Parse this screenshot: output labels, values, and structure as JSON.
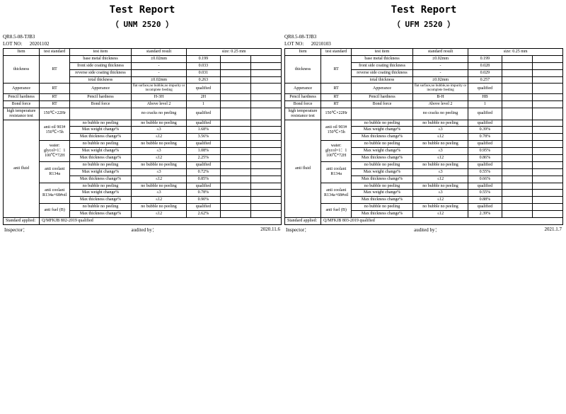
{
  "reports": [
    {
      "title": "Test Report",
      "subtitle": "（ UNM 2520 ）",
      "doc_no": "QR8.5-08-TJB3",
      "lot_label": "LOT NO:",
      "lot_no": "20201102",
      "headers": {
        "item": "Item",
        "test_standard": "test standard",
        "test_item": "test item",
        "standard_result": "standard result",
        "size": "size: 0.25 mm"
      },
      "thickness": {
        "label": "thickness",
        "std": "RT",
        "rows": [
          {
            "test": "base metal thickness",
            "res": "±0.02mm",
            "val": "0.199"
          },
          {
            "test": "front side coating thickness",
            "res": "-",
            "val": "0.033"
          },
          {
            "test": "reverse side coating thickness",
            "res": "-",
            "val": "0.031"
          },
          {
            "test": "total thickness",
            "res": "±0.02mm",
            "val": "0.263"
          }
        ]
      },
      "appearance": {
        "label": "Apperance",
        "std": "RT",
        "test": "Apperance",
        "res": "flat surface,no bubble,no impurity or incomplete feeding",
        "val": "qualified"
      },
      "pencil": {
        "label": "Pencil hardness",
        "std": "RT",
        "test": "Pencil hardness",
        "res": "H-3H",
        "val": "2H"
      },
      "bond": {
        "label": "Bond force",
        "std": "RT",
        "test": "Bond force",
        "res": "Above level 2",
        "val": "1"
      },
      "hightemp": {
        "label": "high temperature resistance test",
        "std": "150℃×22Hr",
        "test": "",
        "res": "no cracks  no peeling",
        "val": "qualified"
      },
      "antifluid": {
        "label": "anti fluid",
        "groups": [
          {
            "std": "anti oil 903# 150℃×5h",
            "rows": [
              {
                "test": "no bubble  no peeling",
                "res": "no bubble  no peeling",
                "val": "qualified"
              },
              {
                "test": "Max weight change%",
                "res": "≤3",
                "val": "1.68%"
              },
              {
                "test": "Max thickness change%",
                "res": "≤12",
                "val": "3.56%"
              }
            ]
          },
          {
            "std": "water: glycol=1：1 100℃*72H",
            "rows": [
              {
                "test": "no bubble  no peeling",
                "res": "no bubble  no peeling",
                "val": "qualified"
              },
              {
                "test": "Max weight change%",
                "res": "≤3",
                "val": "1.08%"
              },
              {
                "test": "Max thickness change%",
                "res": "≤12",
                "val": "2.25%"
              }
            ]
          },
          {
            "std": "anti coolant R134a",
            "rows": [
              {
                "test": "no bubble  no peeling",
                "res": "no bubble  no peeling",
                "val": "qualified"
              },
              {
                "test": "Max weight change%",
                "res": "≤3",
                "val": "0.72%"
              },
              {
                "test": "Max thickness change%",
                "res": "≤12",
                "val": "0.85%"
              }
            ]
          },
          {
            "std": "anti coolant R134a+68#oil",
            "rows": [
              {
                "test": "no bubble  no peeling",
                "res": "no bubble  no peeling",
                "val": "qualified"
              },
              {
                "test": "Max weight change%",
                "res": "≤3",
                "val": "0.78%"
              },
              {
                "test": "Max thickness change%",
                "res": "≤12",
                "val": "0.90%"
              }
            ]
          },
          {
            "std": "anti fuel (B)",
            "rows": [
              {
                "test": "no bubble  no peeling",
                "res": "no bubble  no peeling",
                "val": "qualified"
              },
              {
                "test": "Max thickness change%",
                "res": "≤12",
                "val": "2.62%"
              }
            ]
          }
        ]
      },
      "std_applied": {
        "label": "Standard applied:",
        "val": "Q/MFKJB 802-2019  qualified"
      },
      "footer": {
        "inspector": "Inspector：",
        "audited": "audited by：",
        "date": "2020.11.6"
      }
    },
    {
      "title": "Test Report",
      "subtitle": "（ UFM 2520 ）",
      "doc_no": "QR8.5-08-TJB3",
      "lot_label": "LOT NO:",
      "lot_no": "20210103",
      "headers": {
        "item": "Item",
        "test_standard": "test standard",
        "test_item": "test item",
        "standard_result": "standard result",
        "size": "size: 0.25 mm"
      },
      "thickness": {
        "label": "thickness",
        "std": "RT",
        "rows": [
          {
            "test": "base metal thickness",
            "res": "±0.02mm",
            "val": "0.199"
          },
          {
            "test": "front side coating thickness",
            "res": "-",
            "val": "0.028"
          },
          {
            "test": "reverse side coating thickness",
            "res": "-",
            "val": "0.029"
          },
          {
            "test": "total thickness",
            "res": "±0.02mm",
            "val": "0.257"
          }
        ]
      },
      "appearance": {
        "label": "Apperance",
        "std": "RT",
        "test": "Apperance",
        "res": "flat surface,no bubble,no impurity or incomplete feeding",
        "val": "qualified"
      },
      "pencil": {
        "label": "Pencil hardness",
        "std": "RT",
        "test": "Pencil hardness",
        "res": "B-H",
        "val": "HB"
      },
      "bond": {
        "label": "Bond force",
        "std": "RT",
        "test": "Bond force",
        "res": "Above level 2",
        "val": "1"
      },
      "hightemp": {
        "label": "high temperature resistance test",
        "std": "150℃×22Hr",
        "test": "",
        "res": "no cracks  no peeling",
        "val": "qualified"
      },
      "antifluid": {
        "label": "anti fluid",
        "groups": [
          {
            "std": "anti oil 903# 150℃×5h",
            "rows": [
              {
                "test": "no bubble  no peeling",
                "res": "no bubble  no peeling",
                "val": "qualified"
              },
              {
                "test": "Max weight change%",
                "res": "≤3",
                "val": "0.39%"
              },
              {
                "test": "Max thickness change%",
                "res": "≤12",
                "val": "0.78%"
              }
            ]
          },
          {
            "std": "water: glycol=1：1 100℃*72H",
            "rows": [
              {
                "test": "no bubble  no peeling",
                "res": "no bubble  no peeling",
                "val": "qualified"
              },
              {
                "test": "Max weight change%",
                "res": "≤3",
                "val": "0.95%"
              },
              {
                "test": "Max thickness change%",
                "res": "≤12",
                "val": "0.86%"
              }
            ]
          },
          {
            "std": "anti coolant R134a",
            "rows": [
              {
                "test": "no bubble  no peeling",
                "res": "no bubble  no peeling",
                "val": "qualified"
              },
              {
                "test": "Max weight change%",
                "res": "≤3",
                "val": "0.55%"
              },
              {
                "test": "Max thickness change%",
                "res": "≤12",
                "val": "0.66%"
              }
            ]
          },
          {
            "std": "anti coolant R134a+68#oil",
            "rows": [
              {
                "test": "no bubble  no peeling",
                "res": "no bubble  no peeling",
                "val": "qualified"
              },
              {
                "test": "Max weight change%",
                "res": "≤3",
                "val": "0.55%"
              },
              {
                "test": "Max thickness change%",
                "res": "≤12",
                "val": "0.88%"
              }
            ]
          },
          {
            "std": "anti fuel (B)",
            "rows": [
              {
                "test": "no bubble  no peeling",
                "res": "no bubble  no peeling",
                "val": "qualified"
              },
              {
                "test": "Max thickness change%",
                "res": "≤12",
                "val": "2.39%"
              }
            ]
          }
        ]
      },
      "std_applied": {
        "label": "Standard applied:",
        "val": "Q/MFKJB 803-2019  qualified"
      },
      "footer": {
        "inspector": "Inspector：",
        "audited": "audited by：",
        "date": "2021.1.7"
      }
    }
  ]
}
